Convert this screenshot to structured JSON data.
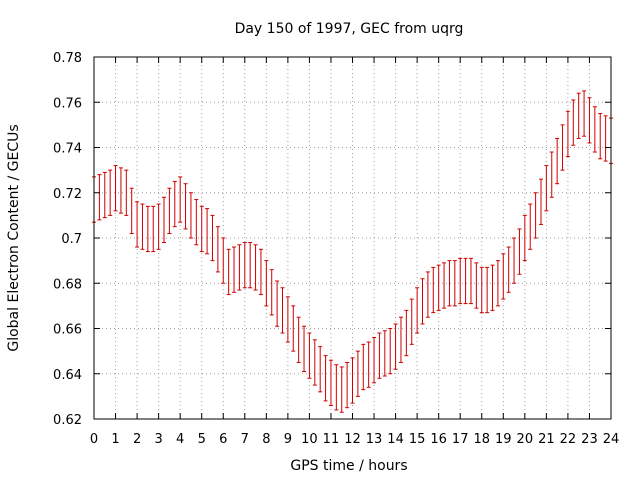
{
  "chart_data": {
    "type": "line",
    "title": "Day 150 of 1997, GEC from uqrg",
    "xlabel": "GPS time / hours",
    "ylabel": "Global Electron Content / GECUs",
    "xlim": [
      0,
      24
    ],
    "ylim": [
      0.62,
      0.78
    ],
    "xticks": [
      0,
      1,
      2,
      3,
      4,
      5,
      6,
      7,
      8,
      9,
      10,
      11,
      12,
      13,
      14,
      15,
      16,
      17,
      18,
      19,
      20,
      21,
      22,
      23,
      24
    ],
    "yticks": [
      0.62,
      0.64,
      0.66,
      0.68,
      0.7,
      0.72,
      0.74,
      0.76,
      0.78
    ],
    "ytick_labels": [
      "0.62",
      "0.64",
      "0.66",
      "0.68",
      "0.7",
      "0.72",
      "0.74",
      "0.76",
      "0.78"
    ],
    "grid": true,
    "error_bar_half_width": 0.01,
    "color": "#cc0000",
    "series": [
      {
        "x": [
          0,
          0.25,
          0.5,
          0.75,
          1,
          1.25,
          1.5,
          1.75,
          2,
          2.25,
          2.5,
          2.75,
          3,
          3.25,
          3.5,
          3.75,
          4,
          4.25,
          4.5,
          4.75,
          5,
          5.25,
          5.5,
          5.75,
          6,
          6.25,
          6.5,
          6.75,
          7,
          7.25,
          7.5,
          7.75,
          8,
          8.25,
          8.5,
          8.75,
          9,
          9.25,
          9.5,
          9.75,
          10,
          10.25,
          10.5,
          10.75,
          11,
          11.25,
          11.5,
          11.75,
          12,
          12.25,
          12.5,
          12.75,
          13,
          13.25,
          13.5,
          13.75,
          14,
          14.25,
          14.5,
          14.75,
          15,
          15.25,
          15.5,
          15.75,
          16,
          16.25,
          16.5,
          16.75,
          17,
          17.25,
          17.5,
          17.75,
          18,
          18.25,
          18.5,
          18.75,
          19,
          19.25,
          19.5,
          19.75,
          20,
          20.25,
          20.5,
          20.75,
          21,
          21.25,
          21.5,
          21.75,
          22,
          22.25,
          22.5,
          22.75,
          23,
          23.25,
          23.5,
          23.75,
          24
        ],
        "y": [
          0.717,
          0.718,
          0.719,
          0.72,
          0.722,
          0.721,
          0.72,
          0.712,
          0.706,
          0.705,
          0.704,
          0.704,
          0.705,
          0.708,
          0.712,
          0.715,
          0.717,
          0.714,
          0.71,
          0.707,
          0.704,
          0.703,
          0.7,
          0.695,
          0.69,
          0.685,
          0.686,
          0.687,
          0.688,
          0.688,
          0.687,
          0.685,
          0.68,
          0.676,
          0.671,
          0.668,
          0.664,
          0.66,
          0.655,
          0.651,
          0.648,
          0.645,
          0.642,
          0.638,
          0.636,
          0.634,
          0.633,
          0.635,
          0.637,
          0.64,
          0.643,
          0.644,
          0.646,
          0.648,
          0.649,
          0.65,
          0.652,
          0.655,
          0.658,
          0.663,
          0.668,
          0.672,
          0.675,
          0.677,
          0.678,
          0.679,
          0.68,
          0.68,
          0.681,
          0.681,
          0.681,
          0.679,
          0.677,
          0.677,
          0.678,
          0.68,
          0.683,
          0.686,
          0.69,
          0.694,
          0.7,
          0.705,
          0.71,
          0.716,
          0.722,
          0.728,
          0.734,
          0.74,
          0.746,
          0.751,
          0.754,
          0.755,
          0.752,
          0.748,
          0.745,
          0.744,
          0.743
        ]
      }
    ]
  }
}
